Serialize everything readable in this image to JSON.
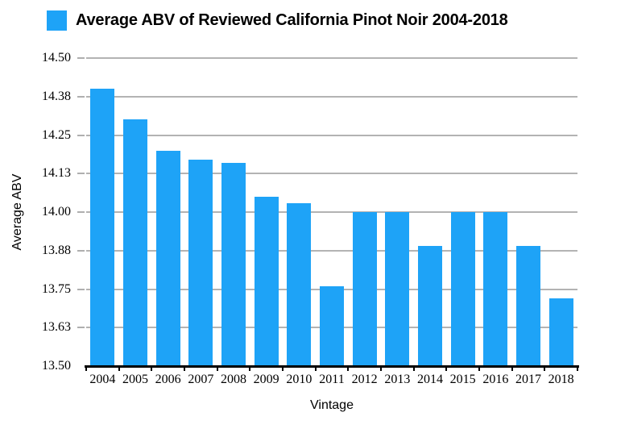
{
  "chart_data": {
    "type": "bar",
    "title": "Average ABV of Reviewed California Pinot Noir 2004-2018",
    "xlabel": "Vintage",
    "ylabel": "Average ABV",
    "categories": [
      "2004",
      "2005",
      "2006",
      "2007",
      "2008",
      "2009",
      "2010",
      "2011",
      "2012",
      "2013",
      "2014",
      "2015",
      "2016",
      "2017",
      "2018"
    ],
    "values": [
      14.4,
      14.3,
      14.2,
      14.17,
      14.16,
      14.05,
      14.03,
      13.76,
      14.0,
      14.0,
      13.89,
      14.0,
      14.0,
      13.89,
      13.72
    ],
    "ylim": [
      13.5,
      14.5
    ],
    "y_ticks": [
      {
        "value": 14.5,
        "label": "14.50"
      },
      {
        "value": 14.375,
        "label": "14.38"
      },
      {
        "value": 14.25,
        "label": "14.25"
      },
      {
        "value": 14.125,
        "label": "14.13"
      },
      {
        "value": 14.0,
        "label": "14.00"
      },
      {
        "value": 13.875,
        "label": "13.88"
      },
      {
        "value": 13.75,
        "label": "13.75"
      },
      {
        "value": 13.625,
        "label": "13.63"
      },
      {
        "value": 13.5,
        "label": "13.50"
      }
    ],
    "legend": {
      "position": "top-left",
      "series_label": "Average ABV of Reviewed California Pinot Noir 2004-2018"
    },
    "grid": "horizontal",
    "colors": {
      "bar": "#1EA3F7",
      "gridline": "#B3B3B3",
      "tick": "#AFAFAF",
      "axis_line": "#000000",
      "text": "#000000",
      "background": "#FFFFFF"
    }
  }
}
